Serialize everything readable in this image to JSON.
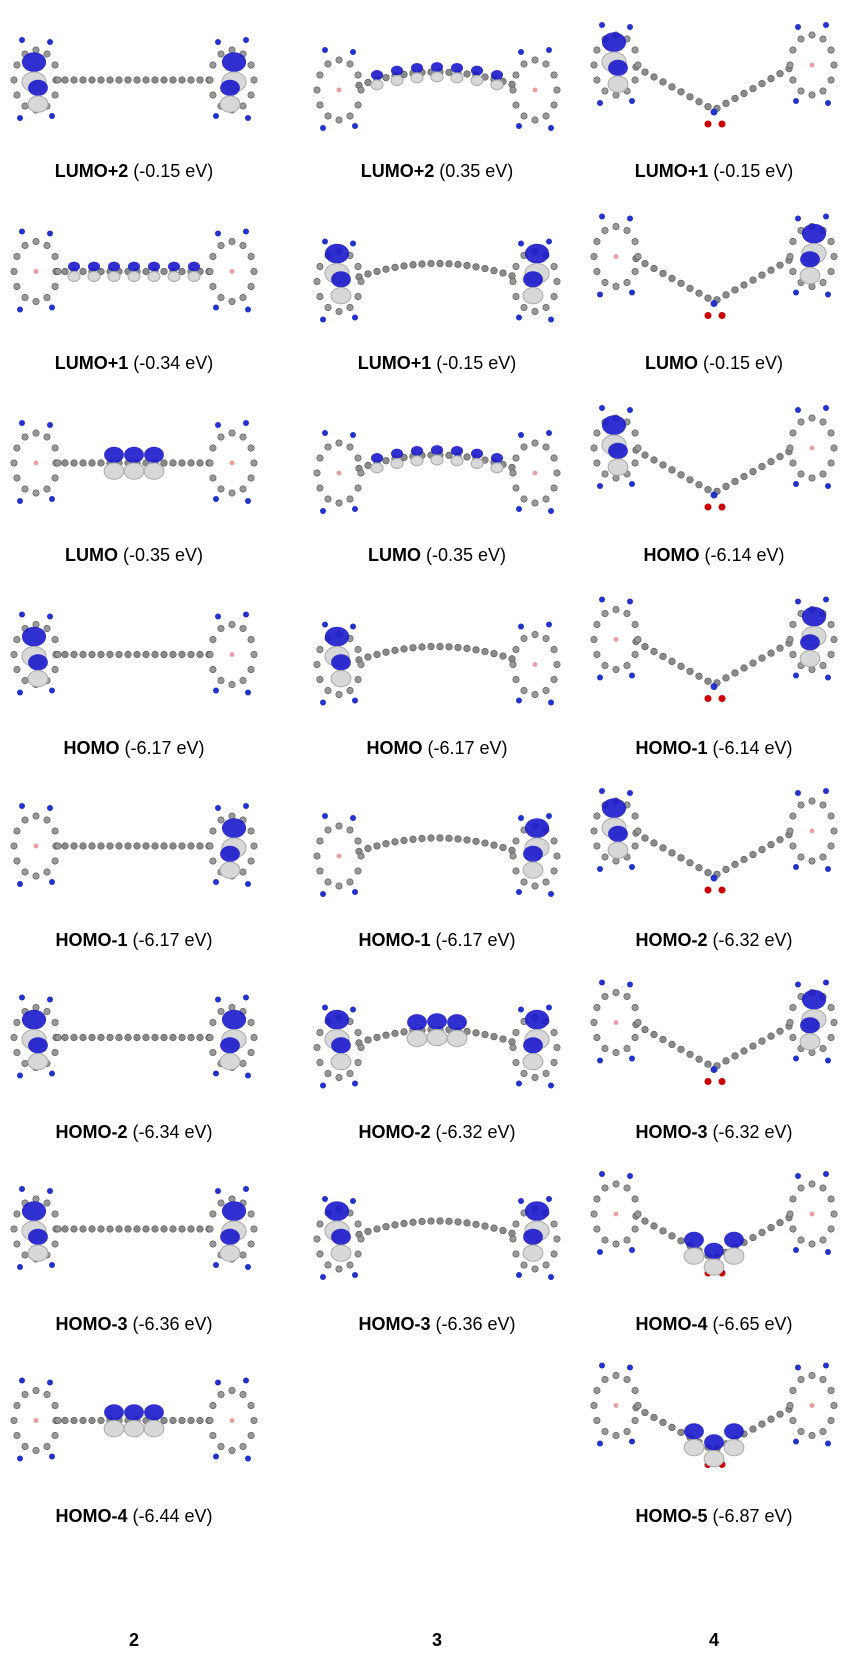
{
  "columns": [
    {
      "footer": "2",
      "cells": [
        {
          "orbital": "LUMO+2",
          "energy": "(-0.15 eV)"
        },
        {
          "orbital": "LUMO+1",
          "energy": "(-0.34 eV)"
        },
        {
          "orbital": "LUMO",
          "energy": "(-0.35 eV)"
        },
        {
          "orbital": "HOMO",
          "energy": "(-6.17 eV)"
        },
        {
          "orbital": "HOMO-1",
          "energy": "(-6.17 eV)"
        },
        {
          "orbital": "HOMO-2",
          "energy": "(-6.34 eV)"
        },
        {
          "orbital": "HOMO-3",
          "energy": "(-6.36 eV)"
        },
        {
          "orbital": "HOMO-4",
          "energy": "(-6.44 eV)"
        }
      ]
    },
    {
      "footer": "3",
      "cells": [
        {
          "orbital": "LUMO+2",
          "energy": "(0.35 eV)"
        },
        {
          "orbital": "LUMO+1",
          "energy": "(-0.15 eV)"
        },
        {
          "orbital": "LUMO",
          "energy": "(-0.35 eV)"
        },
        {
          "orbital": "HOMO",
          "energy": "(-6.17 eV)"
        },
        {
          "orbital": "HOMO-1",
          "energy": "(-6.17 eV)"
        },
        {
          "orbital": "HOMO-2",
          "energy": "(-6.32 eV)"
        },
        {
          "orbital": "HOMO-3",
          "energy": "(-6.36 eV)"
        }
      ]
    },
    {
      "footer": "4",
      "cells": [
        {
          "orbital": "LUMO+1",
          "energy": "(-0.15 eV)"
        },
        {
          "orbital": "LUMO",
          "energy": "(-0.15 eV)"
        },
        {
          "orbital": "HOMO",
          "energy": "(-6.14 eV)"
        },
        {
          "orbital": "HOMO-1",
          "energy": "(-6.14 eV)"
        },
        {
          "orbital": "HOMO-2",
          "energy": "(-6.32 eV)"
        },
        {
          "orbital": "HOMO-3",
          "energy": "(-6.32 eV)"
        },
        {
          "orbital": "HOMO-4",
          "energy": "(-6.65 eV)"
        },
        {
          "orbital": "HOMO-5",
          "energy": "(-6.87 eV)"
        }
      ]
    }
  ]
}
